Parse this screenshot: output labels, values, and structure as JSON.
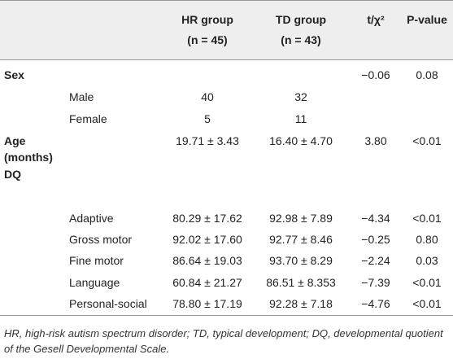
{
  "table": {
    "header": [
      [
        "HR group",
        "(n = 45)"
      ],
      [
        "TD group",
        "(n = 43)"
      ],
      [
        "t/χ²"
      ],
      [
        "P-value"
      ]
    ],
    "sections": [
      {
        "label": "Sex",
        "cells": [
          null,
          null,
          "−0.06",
          "0.08"
        ],
        "items": [
          {
            "label": "Male",
            "cells": [
              "40",
              "32",
              null,
              null
            ]
          },
          {
            "label": "Female",
            "cells": [
              "5",
              "11",
              null,
              null
            ]
          }
        ]
      },
      {
        "label": "Age (months)",
        "cells": [
          "19.71 ± 3.43",
          "16.40 ± 4.70",
          "3.80",
          "<0.01"
        ],
        "items": []
      },
      {
        "label": "DQ",
        "cells": [
          null,
          null,
          null,
          null
        ],
        "items": [
          {
            "label": "Adaptive",
            "cells": [
              "80.29 ± 17.62",
              "92.98 ± 7.89",
              "−4.34",
              "<0.01"
            ]
          },
          {
            "label": "Gross motor",
            "cells": [
              "92.02 ± 17.60",
              "92.77 ± 8.46",
              "−0.25",
              "0.80"
            ]
          },
          {
            "label": "Fine motor",
            "cells": [
              "86.64 ± 19.03",
              "93.70 ± 8.29",
              "−2.24",
              "0.03"
            ]
          },
          {
            "label": "Language",
            "cells": [
              "60.84 ± 21.27",
              "86.51 ± 8.353",
              "−7.39",
              "<0.01"
            ]
          },
          {
            "label": "Personal-social",
            "cells": [
              "78.80 ± 17.19",
              "92.28 ± 7.18",
              "−4.76",
              "<0.01"
            ]
          }
        ]
      }
    ]
  },
  "footnote": "HR, high-risk autism spectrum disorder; TD, typical development; DQ, developmental quotient of the Gesell Developmental Scale."
}
